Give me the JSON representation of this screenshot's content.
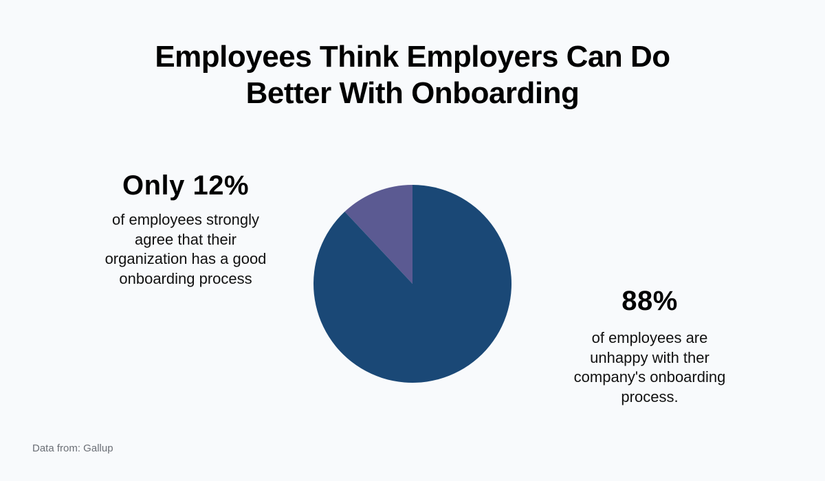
{
  "title": [
    "Employees Think Employers Can Do",
    "Better With Onboarding"
  ],
  "chart_data": {
    "type": "pie",
    "title": "Employees Think Employers Can Do Better With Onboarding",
    "slices": [
      {
        "label": "strongly agree organization has a good onboarding process",
        "value": 12,
        "color": "#5b5a92"
      },
      {
        "label": "unhappy with their company's onboarding process",
        "value": 88,
        "color": "#1a4876"
      }
    ]
  },
  "callouts": {
    "left": {
      "value": "Only 12%",
      "desc": [
        "of employees strongly",
        "agree that their",
        "organization has a good",
        "onboarding process"
      ]
    },
    "right": {
      "value": "88%",
      "desc": [
        "of employees are",
        "unhappy with ther",
        "company's onboarding",
        "process."
      ]
    }
  },
  "source": "Data from: Gallup"
}
